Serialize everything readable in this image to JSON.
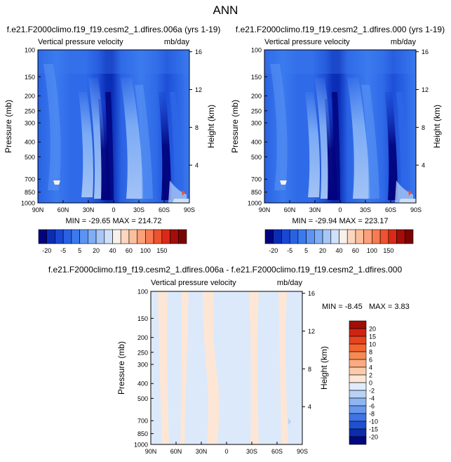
{
  "figure_title": "ANN",
  "chart_data": [
    {
      "type": "heatmap",
      "title": "f.e21.F2000climo.f19_f19.cesm2_1.dfires.006a (yrs 1-19)",
      "subtitle_left": "Vertical pressure velocity",
      "subtitle_right": "mb/day",
      "ylabel": "Pressure (mb)",
      "ylabel_right": "Height (km)",
      "x_ticks": [
        "90N",
        "60N",
        "30N",
        "0",
        "30S",
        "60S",
        "90S"
      ],
      "y_ticks": [
        "100",
        "150",
        "200",
        "250",
        "300",
        "400",
        "500",
        "700",
        "850",
        "1000"
      ],
      "y_ticks_right": [
        "16",
        "12",
        "8",
        "4"
      ],
      "min_max_text": "MIN = -29.65   MAX = 214.72",
      "colorbar_levels": [
        "-20",
        "-5",
        "5",
        "20",
        "40",
        "60",
        "100",
        "150"
      ],
      "colorbar_colors": [
        "#02047f",
        "#0a2db5",
        "#1947d5",
        "#2962e4",
        "#3b7aee",
        "#5b94f4",
        "#7faef6",
        "#a8c7f6",
        "#cfe0f8",
        "#f8f0ea",
        "#fdd6bf",
        "#fcbf9c",
        "#fba07a",
        "#f77a52",
        "#ee5230",
        "#d92a17",
        "#a40d08",
        "#7a0403"
      ]
    },
    {
      "type": "heatmap",
      "title": "f.e21.F2000climo.f19_f19.cesm2_1.dfires.000 (yrs 1-19)",
      "subtitle_left": "Vertical pressure velocity",
      "subtitle_right": "mb/day",
      "ylabel": "Pressure (mb)",
      "ylabel_right": "Height (km)",
      "x_ticks": [
        "90N",
        "60N",
        "30N",
        "0",
        "30S",
        "60S",
        "90S"
      ],
      "y_ticks": [
        "100",
        "150",
        "200",
        "250",
        "300",
        "400",
        "500",
        "700",
        "850",
        "1000"
      ],
      "y_ticks_right": [
        "16",
        "12",
        "8",
        "4"
      ],
      "min_max_text": "MIN = -29.94   MAX = 223.17",
      "colorbar_levels": [
        "-20",
        "-5",
        "5",
        "20",
        "40",
        "60",
        "100",
        "150"
      ],
      "colorbar_colors": [
        "#02047f",
        "#0a2db5",
        "#1947d5",
        "#2962e4",
        "#3b7aee",
        "#5b94f4",
        "#7faef6",
        "#a8c7f6",
        "#cfe0f8",
        "#f8f0ea",
        "#fdd6bf",
        "#fcbf9c",
        "#fba07a",
        "#f77a52",
        "#ee5230",
        "#d92a17",
        "#a40d08",
        "#7a0403"
      ]
    },
    {
      "type": "heatmap",
      "title": "f.e21.F2000climo.f19_f19.cesm2_1.dfires.006a - f.e21.F2000climo.f19_f19.cesm2_1.dfires.000",
      "subtitle_left": "Vertical pressure velocity",
      "subtitle_right": "mb/day",
      "ylabel": "Pressure (mb)",
      "ylabel_right": "Height (km)",
      "x_ticks": [
        "90N",
        "60N",
        "30N",
        "0",
        "30S",
        "60S",
        "90S"
      ],
      "y_ticks": [
        "100",
        "150",
        "200",
        "250",
        "300",
        "400",
        "500",
        "700",
        "850",
        "1000"
      ],
      "y_ticks_right": [
        "16",
        "12",
        "8",
        "4"
      ],
      "min_text": "MIN = -8.45",
      "max_text": "MAX =  3.83",
      "colorbar_levels": [
        "20",
        "15",
        "10",
        "8",
        "6",
        "4",
        "2",
        "0",
        "-2",
        "-4",
        "-6",
        "-8",
        "-10",
        "-15",
        "-20"
      ],
      "colorbar_colors": [
        "#a20d08",
        "#cf2412",
        "#e6441f",
        "#f2652f",
        "#f78a52",
        "#fbab7f",
        "#fccbaa",
        "#fde6d5",
        "#e0ecfb",
        "#b8d2f6",
        "#8fb5f2",
        "#6797ee",
        "#3f73e6",
        "#1f50d0",
        "#0d2cab",
        "#03087f"
      ]
    }
  ]
}
